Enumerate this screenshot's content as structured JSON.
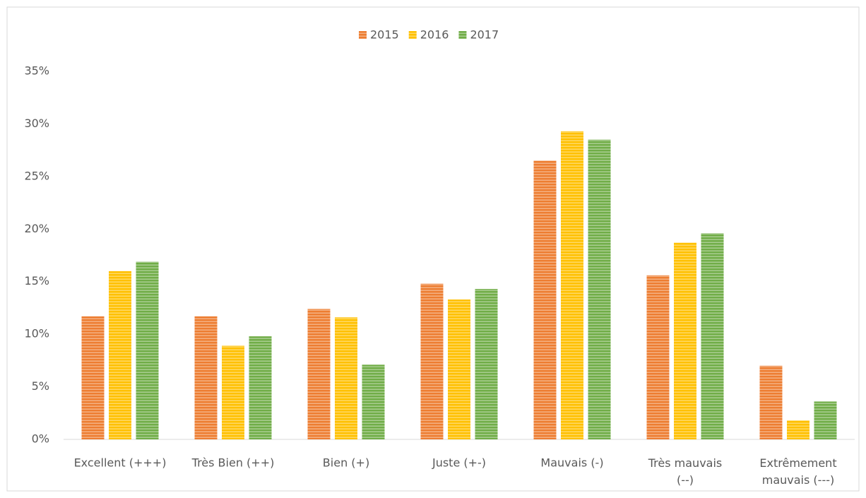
{
  "chart_data": {
    "type": "bar",
    "categories": [
      "Excellent (+++)",
      "Très Bien (++)",
      "Bien (+)",
      "Juste (+-)",
      "Mauvais (-)",
      "Très mauvais (--)",
      "Extrêmement mauvais (---)"
    ],
    "series": [
      {
        "name": "2015",
        "color": "#ed7d31",
        "values": [
          11.7,
          11.7,
          12.4,
          14.8,
          26.5,
          15.6,
          7.0
        ]
      },
      {
        "name": "2016",
        "color": "#ffc000",
        "values": [
          16.0,
          8.9,
          11.6,
          13.3,
          29.3,
          18.7,
          1.8
        ]
      },
      {
        "name": "2017",
        "color": "#70ad47",
        "values": [
          16.9,
          9.8,
          7.1,
          14.3,
          28.5,
          19.6,
          3.6
        ]
      }
    ],
    "ylim": [
      0,
      35
    ],
    "yticks": [
      {
        "value": 0,
        "label": "0%"
      },
      {
        "value": 5,
        "label": "5%"
      },
      {
        "value": 10,
        "label": "10%"
      },
      {
        "value": 15,
        "label": "15%"
      },
      {
        "value": 20,
        "label": "20%"
      },
      {
        "value": 25,
        "label": "25%"
      },
      {
        "value": 30,
        "label": "30%"
      },
      {
        "value": 35,
        "label": "35%"
      }
    ],
    "grid": false,
    "legend": "top"
  }
}
